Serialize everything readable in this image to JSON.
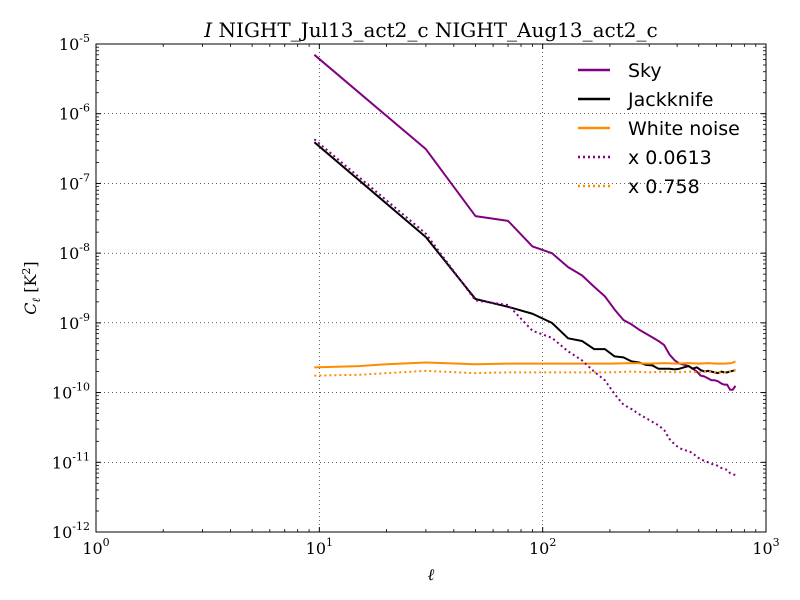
{
  "chart_data": {
    "type": "line",
    "title_prefix": "I",
    "title_rest": " NIGHT_Jul13_act2_c NIGHT_Aug13_act2_c",
    "xlabel": "ℓ",
    "ylabel_main": "C",
    "ylabel_sub": "ℓ",
    "ylabel_unit": " [K",
    "ylabel_unit_sup": "2",
    "ylabel_unit_end": "]",
    "xscale": "log",
    "yscale": "log",
    "xlim": [
      1,
      1000
    ],
    "ylim": [
      1e-12,
      1e-05
    ],
    "grid": true,
    "legend_loc": "upper right",
    "x_ticks": [
      {
        "value": 1,
        "base": "10",
        "exp": "0"
      },
      {
        "value": 10,
        "base": "10",
        "exp": "1"
      },
      {
        "value": 100,
        "base": "10",
        "exp": "2"
      },
      {
        "value": 1000,
        "base": "10",
        "exp": "3"
      }
    ],
    "y_ticks": [
      {
        "value": 1e-12,
        "base": "10",
        "exp": "-12"
      },
      {
        "value": 1e-11,
        "base": "10",
        "exp": "-11"
      },
      {
        "value": 1e-10,
        "base": "10",
        "exp": "-10"
      },
      {
        "value": 1e-09,
        "base": "10",
        "exp": "-9"
      },
      {
        "value": 1e-08,
        "base": "10",
        "exp": "-8"
      },
      {
        "value": 1e-07,
        "base": "10",
        "exp": "-7"
      },
      {
        "value": 1e-06,
        "base": "10",
        "exp": "-6"
      },
      {
        "value": 1e-05,
        "base": "10",
        "exp": "-5"
      }
    ],
    "series": [
      {
        "name": "Sky",
        "color": "#800080",
        "style": "solid",
        "points": [
          [
            9.5,
            7e-06
          ],
          [
            30,
            3.1e-07
          ],
          [
            50,
            3.4e-08
          ],
          [
            70,
            2.9e-08
          ],
          [
            90,
            1.25e-08
          ],
          [
            110,
            1e-08
          ],
          [
            130,
            6.3e-09
          ],
          [
            150,
            4.8e-09
          ],
          [
            170,
            3.3e-09
          ],
          [
            190,
            2.4e-09
          ],
          [
            210,
            1.55e-09
          ],
          [
            230,
            1.1e-09
          ],
          [
            250,
            9.5e-10
          ],
          [
            270,
            8e-10
          ],
          [
            290,
            7e-10
          ],
          [
            310,
            6.2e-10
          ],
          [
            330,
            5.5e-10
          ],
          [
            350,
            4.8e-10
          ],
          [
            370,
            3.5e-10
          ],
          [
            390,
            2.9e-10
          ],
          [
            410,
            2.6e-10
          ],
          [
            430,
            2.5e-10
          ],
          [
            450,
            2.4e-10
          ],
          [
            470,
            2.2e-10
          ],
          [
            490,
            2e-10
          ],
          [
            510,
            1.75e-10
          ],
          [
            530,
            1.7e-10
          ],
          [
            550,
            1.6e-10
          ],
          [
            570,
            1.5e-10
          ],
          [
            590,
            1.5e-10
          ],
          [
            610,
            1.45e-10
          ],
          [
            630,
            1.35e-10
          ],
          [
            650,
            1.3e-10
          ],
          [
            670,
            1.3e-10
          ],
          [
            690,
            1.1e-10
          ],
          [
            710,
            1.1e-10
          ],
          [
            730,
            1.25e-10
          ]
        ]
      },
      {
        "name": "Jackknife",
        "color": "#000000",
        "style": "solid",
        "points": [
          [
            9.5,
            3.9e-07
          ],
          [
            30,
            1.7e-08
          ],
          [
            50,
            2.2e-09
          ],
          [
            70,
            1.7e-09
          ],
          [
            90,
            1.35e-09
          ],
          [
            110,
            1e-09
          ],
          [
            130,
            6e-10
          ],
          [
            150,
            5.5e-10
          ],
          [
            170,
            4.2e-10
          ],
          [
            190,
            4.2e-10
          ],
          [
            210,
            3.3e-10
          ],
          [
            230,
            3.2e-10
          ],
          [
            250,
            2.8e-10
          ],
          [
            270,
            2.7e-10
          ],
          [
            290,
            2.5e-10
          ],
          [
            310,
            2.45e-10
          ],
          [
            330,
            2.2e-10
          ],
          [
            350,
            2.2e-10
          ],
          [
            370,
            2.2e-10
          ],
          [
            390,
            2.15e-10
          ],
          [
            410,
            2.2e-10
          ],
          [
            430,
            2.3e-10
          ],
          [
            450,
            2.4e-10
          ],
          [
            470,
            2.2e-10
          ],
          [
            490,
            2.3e-10
          ],
          [
            510,
            2.1e-10
          ],
          [
            530,
            2e-10
          ],
          [
            550,
            2.05e-10
          ],
          [
            570,
            2e-10
          ],
          [
            590,
            1.95e-10
          ],
          [
            610,
            1.9e-10
          ],
          [
            630,
            2e-10
          ],
          [
            650,
            1.95e-10
          ],
          [
            670,
            1.95e-10
          ],
          [
            690,
            2e-10
          ],
          [
            710,
            2.05e-10
          ],
          [
            730,
            2.1e-10
          ]
        ]
      },
      {
        "name": "White noise",
        "color": "#ff8c00",
        "style": "solid",
        "points": [
          [
            9.5,
            2.3e-10
          ],
          [
            15,
            2.4e-10
          ],
          [
            20,
            2.55e-10
          ],
          [
            30,
            2.7e-10
          ],
          [
            50,
            2.55e-10
          ],
          [
            70,
            2.6e-10
          ],
          [
            100,
            2.6e-10
          ],
          [
            150,
            2.6e-10
          ],
          [
            200,
            2.6e-10
          ],
          [
            250,
            2.65e-10
          ],
          [
            300,
            2.6e-10
          ],
          [
            350,
            2.65e-10
          ],
          [
            400,
            2.6e-10
          ],
          [
            450,
            2.65e-10
          ],
          [
            500,
            2.6e-10
          ],
          [
            550,
            2.65e-10
          ],
          [
            600,
            2.6e-10
          ],
          [
            650,
            2.6e-10
          ],
          [
            700,
            2.65e-10
          ],
          [
            730,
            2.8e-10
          ]
        ]
      },
      {
        "name": "x 0.0613",
        "color": "#800080",
        "style": "dotted",
        "points": [
          [
            9.5,
            4.3e-07
          ],
          [
            30,
            1.9e-08
          ],
          [
            50,
            2.1e-09
          ],
          [
            70,
            1.8e-09
          ],
          [
            90,
            7.7e-10
          ],
          [
            110,
            6.1e-10
          ],
          [
            130,
            3.9e-10
          ],
          [
            150,
            2.9e-10
          ],
          [
            170,
            2e-10
          ],
          [
            190,
            1.5e-10
          ],
          [
            210,
            9.5e-11
          ],
          [
            230,
            6.7e-11
          ],
          [
            250,
            5.8e-11
          ],
          [
            270,
            4.9e-11
          ],
          [
            290,
            4.3e-11
          ],
          [
            310,
            3.8e-11
          ],
          [
            330,
            3.4e-11
          ],
          [
            350,
            2.9e-11
          ],
          [
            370,
            2.15e-11
          ],
          [
            390,
            1.8e-11
          ],
          [
            410,
            1.6e-11
          ],
          [
            430,
            1.5e-11
          ],
          [
            450,
            1.45e-11
          ],
          [
            470,
            1.35e-11
          ],
          [
            490,
            1.2e-11
          ],
          [
            510,
            1.1e-11
          ],
          [
            530,
            1.05e-11
          ],
          [
            550,
            1e-11
          ],
          [
            570,
            9.5e-12
          ],
          [
            590,
            9.2e-12
          ],
          [
            610,
            8.9e-12
          ],
          [
            630,
            8.3e-12
          ],
          [
            650,
            8e-12
          ],
          [
            670,
            7.8e-12
          ],
          [
            690,
            7e-12
          ],
          [
            710,
            6.8e-12
          ],
          [
            730,
            6.5e-12
          ]
        ]
      },
      {
        "name": "x 0.758",
        "color": "#ff8c00",
        "style": "dotted",
        "points": [
          [
            9.5,
            1.75e-10
          ],
          [
            15,
            1.8e-10
          ],
          [
            20,
            1.9e-10
          ],
          [
            30,
            2.05e-10
          ],
          [
            50,
            1.9e-10
          ],
          [
            70,
            1.95e-10
          ],
          [
            100,
            1.95e-10
          ],
          [
            150,
            1.95e-10
          ],
          [
            200,
            1.95e-10
          ],
          [
            250,
            2e-10
          ],
          [
            300,
            1.95e-10
          ],
          [
            350,
            2e-10
          ],
          [
            400,
            1.95e-10
          ],
          [
            450,
            2e-10
          ],
          [
            500,
            1.95e-10
          ],
          [
            550,
            2e-10
          ],
          [
            600,
            1.95e-10
          ],
          [
            650,
            1.95e-10
          ],
          [
            700,
            2e-10
          ],
          [
            730,
            2.1e-10
          ]
        ]
      }
    ]
  }
}
